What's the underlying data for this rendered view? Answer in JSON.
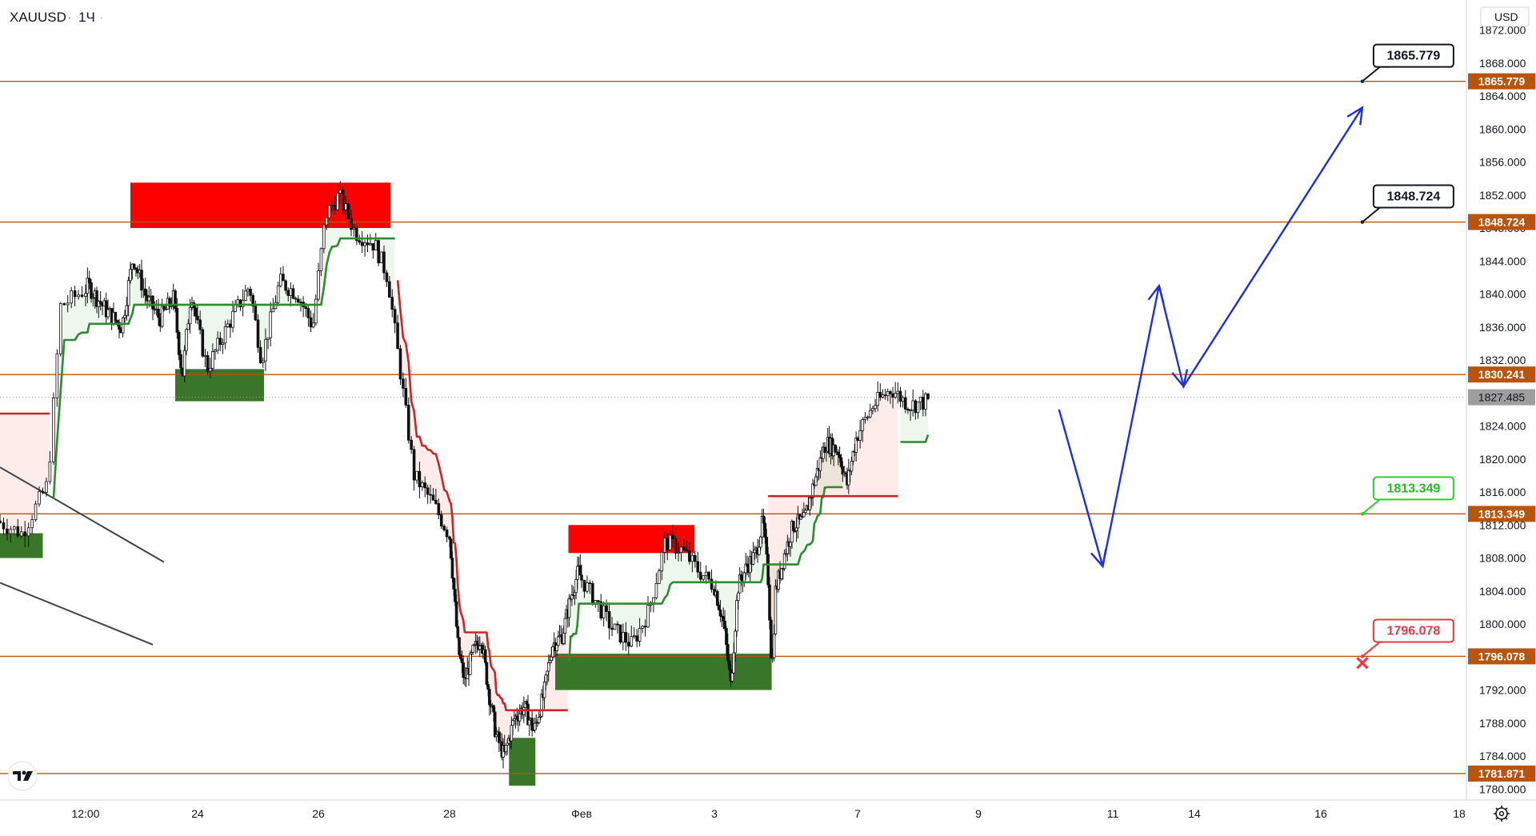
{
  "header": {
    "symbol": "XAUUSD",
    "separator": "·",
    "interval": "1Ч",
    "more": "·"
  },
  "currency": "USD",
  "colors": {
    "level": "#b8540b",
    "levelLabelBg": "#b8540b",
    "bull": "#2e8b2e",
    "bear": "#c62828",
    "supply": "#ff0000",
    "demand": "#2f6f1f",
    "projection": "#1f2fe0",
    "candle": "#111111",
    "currentPriceBg": "#9e9e9e"
  },
  "chart_data": {
    "type": "candlestick",
    "symbol": "XAUUSD",
    "interval": "1Ч",
    "ylim": [
      1778.0,
      1874.0
    ],
    "y_ticks": [
      "1872.000",
      "1868.000",
      "1864.000",
      "1860.000",
      "1856.000",
      "1852.000",
      "1848.000",
      "1844.000",
      "1840.000",
      "1836.000",
      "1832.000",
      "1828.000",
      "1824.000",
      "1820.000",
      "1816.000",
      "1812.000",
      "1808.000",
      "1804.000",
      "1800.000",
      "1796.000",
      "1792.000",
      "1788.000",
      "1784.000",
      "1780.000"
    ],
    "x_ticks": [
      {
        "label": "12:00",
        "day": 21.5
      },
      {
        "label": "24",
        "day": 24
      },
      {
        "label": "26",
        "day": 26
      },
      {
        "label": "28",
        "day": 28
      },
      {
        "label": "Фев",
        "day": 32
      },
      {
        "label": "3",
        "day": 34
      },
      {
        "label": "7",
        "day": 38
      },
      {
        "label": "9",
        "day": 40
      },
      {
        "label": "11",
        "day": 42
      },
      {
        "label": "14",
        "day": 45
      },
      {
        "label": "16",
        "day": 47
      },
      {
        "label": "18",
        "day": 49
      }
    ],
    "current_price": "1827.485",
    "levels": [
      {
        "price": 1865.779,
        "label": "1865.779"
      },
      {
        "price": 1848.724,
        "label": "1848.724"
      },
      {
        "price": 1830.241,
        "label": "1830.241"
      },
      {
        "price": 1813.349,
        "label": "1813.349"
      },
      {
        "price": 1796.078,
        "label": "1796.078"
      },
      {
        "price": 1781.871,
        "label": "1781.871"
      }
    ],
    "callouts": [
      {
        "label": "1865.779",
        "price": 1865.779,
        "day": 47.6,
        "style": "dark"
      },
      {
        "label": "1848.724",
        "price": 1848.724,
        "day": 47.6,
        "style": "dark"
      },
      {
        "label": "1813.349",
        "price": 1813.349,
        "day": 47.6,
        "style": "green"
      },
      {
        "label": "1796.078",
        "price": 1796.078,
        "day": 47.6,
        "style": "red"
      }
    ],
    "stop_marker": {
      "price": 1795.2,
      "day": 47.6,
      "symbol": "✕"
    },
    "supply_zones": [
      {
        "day_from": 22.5,
        "day_to": 27.1,
        "price_top": 1853.5,
        "price_bottom": 1848.0
      },
      {
        "day_from": 31.6,
        "day_to": 33.7,
        "price_top": 1812.0,
        "price_bottom": 1808.6
      }
    ],
    "demand_zones": [
      {
        "day_from": 20.5,
        "day_to": 21.0,
        "price_top": 1811.0,
        "price_bottom": 1808.0
      },
      {
        "day_from": 23.5,
        "day_to": 25.1,
        "price_top": 1830.9,
        "price_bottom": 1827.0
      },
      {
        "day_from": 29.8,
        "day_to": 30.6,
        "price_top": 1786.2,
        "price_bottom": 1780.4
      },
      {
        "day_from": 31.2,
        "day_to": 35.6,
        "price_top": 1796.4,
        "price_bottom": 1792.0
      }
    ],
    "projection": [
      {
        "day": 41.2,
        "price": 1826.0
      },
      {
        "day": 41.85,
        "price": 1807.0
      },
      {
        "day": 43.7,
        "price": 1841.0
      },
      {
        "day": 44.6,
        "price": 1828.8
      },
      {
        "day": 47.6,
        "price": 1862.6
      }
    ],
    "trendlines": [
      {
        "from": {
          "day": 20.5,
          "price": 1819.0
        },
        "to": {
          "day": 23.25,
          "price": 1807.5
        }
      },
      {
        "from": {
          "day": 20.5,
          "price": 1805.0
        },
        "to": {
          "day": 23.0,
          "price": 1797.5
        }
      }
    ],
    "supertrend": [
      {
        "day_from": 20.5,
        "day_to": 21.1,
        "value": 1825.5,
        "trend": "down"
      },
      {
        "day_from": 21.1,
        "day_to": 27.2,
        "value": null,
        "trend": "up"
      },
      {
        "day_from": 27.2,
        "day_to": 31.6,
        "value": null,
        "trend": "down"
      },
      {
        "day_from": 31.6,
        "day_to": 37.6,
        "value": null,
        "trend": "up"
      },
      {
        "day_from": 35.5,
        "day_to": 38.7,
        "value": 1815.5,
        "trend": "down"
      },
      {
        "day_from": 38.7,
        "day_to": 41.1,
        "value": null,
        "trend": "up"
      }
    ],
    "price_path": [
      {
        "day": 20.5,
        "price": 1812.5
      },
      {
        "day": 20.8,
        "price": 1811.0
      },
      {
        "day": 21.1,
        "price": 1817.0
      },
      {
        "day": 21.25,
        "price": 1838.5
      },
      {
        "day": 21.6,
        "price": 1841.0
      },
      {
        "day": 22.0,
        "price": 1838.0
      },
      {
        "day": 22.35,
        "price": 1836.0
      },
      {
        "day": 22.6,
        "price": 1844.5
      },
      {
        "day": 22.9,
        "price": 1839.5
      },
      {
        "day": 23.2,
        "price": 1837.0
      },
      {
        "day": 23.5,
        "price": 1839.5
      },
      {
        "day": 23.7,
        "price": 1830.0
      },
      {
        "day": 23.9,
        "price": 1840.5
      },
      {
        "day": 24.2,
        "price": 1831.0
      },
      {
        "day": 24.6,
        "price": 1837.0
      },
      {
        "day": 24.9,
        "price": 1841.0
      },
      {
        "day": 25.1,
        "price": 1832.0
      },
      {
        "day": 25.4,
        "price": 1841.5
      },
      {
        "day": 25.7,
        "price": 1840.0
      },
      {
        "day": 25.95,
        "price": 1836.0
      },
      {
        "day": 26.15,
        "price": 1849.5
      },
      {
        "day": 26.35,
        "price": 1852.0
      },
      {
        "day": 26.6,
        "price": 1847.5
      },
      {
        "day": 26.9,
        "price": 1846.0
      },
      {
        "day": 27.1,
        "price": 1842.0
      },
      {
        "day": 27.25,
        "price": 1833.0
      },
      {
        "day": 27.5,
        "price": 1818.0
      },
      {
        "day": 27.8,
        "price": 1814.5
      },
      {
        "day": 28.05,
        "price": 1810.5
      },
      {
        "day": 28.3,
        "price": 1797.0
      },
      {
        "day": 28.5,
        "price": 1793.0
      },
      {
        "day": 28.75,
        "price": 1796.5
      },
      {
        "day": 29.0,
        "price": 1798.5
      },
      {
        "day": 29.2,
        "price": 1792.5
      },
      {
        "day": 29.45,
        "price": 1786.5
      },
      {
        "day": 29.7,
        "price": 1784.0
      },
      {
        "day": 30.0,
        "price": 1788.5
      },
      {
        "day": 30.3,
        "price": 1790.0
      },
      {
        "day": 30.6,
        "price": 1787.0
      },
      {
        "day": 30.9,
        "price": 1791.5
      },
      {
        "day": 31.15,
        "price": 1797.5
      },
      {
        "day": 31.45,
        "price": 1798.5
      },
      {
        "day": 31.7,
        "price": 1803.0
      },
      {
        "day": 31.95,
        "price": 1806.5
      },
      {
        "day": 32.2,
        "price": 1803.5
      },
      {
        "day": 32.5,
        "price": 1799.5
      },
      {
        "day": 32.8,
        "price": 1797.5
      },
      {
        "day": 33.05,
        "price": 1801.5
      },
      {
        "day": 33.3,
        "price": 1810.0
      },
      {
        "day": 33.55,
        "price": 1809.0
      },
      {
        "day": 33.8,
        "price": 1806.5
      },
      {
        "day": 34.05,
        "price": 1804.5
      },
      {
        "day": 34.3,
        "price": 1800.0
      },
      {
        "day": 34.5,
        "price": 1792.5
      },
      {
        "day": 34.7,
        "price": 1804.5
      },
      {
        "day": 34.95,
        "price": 1807.0
      },
      {
        "day": 35.2,
        "price": 1808.5
      },
      {
        "day": 35.4,
        "price": 1812.5
      },
      {
        "day": 35.55,
        "price": 1805.0
      },
      {
        "day": 35.65,
        "price": 1794.0
      },
      {
        "day": 35.75,
        "price": 1804.0
      },
      {
        "day": 36.0,
        "price": 1808.5
      },
      {
        "day": 36.25,
        "price": 1812.0
      },
      {
        "day": 36.55,
        "price": 1812.5
      },
      {
        "day": 36.85,
        "price": 1817.5
      },
      {
        "day": 37.15,
        "price": 1822.0
      },
      {
        "day": 37.5,
        "price": 1821.0
      },
      {
        "day": 37.75,
        "price": 1817.0
      },
      {
        "day": 38.0,
        "price": 1822.5
      },
      {
        "day": 38.3,
        "price": 1826.5
      },
      {
        "day": 38.6,
        "price": 1828.5
      },
      {
        "day": 38.9,
        "price": 1826.5
      },
      {
        "day": 39.2,
        "price": 1827.0
      }
    ]
  }
}
